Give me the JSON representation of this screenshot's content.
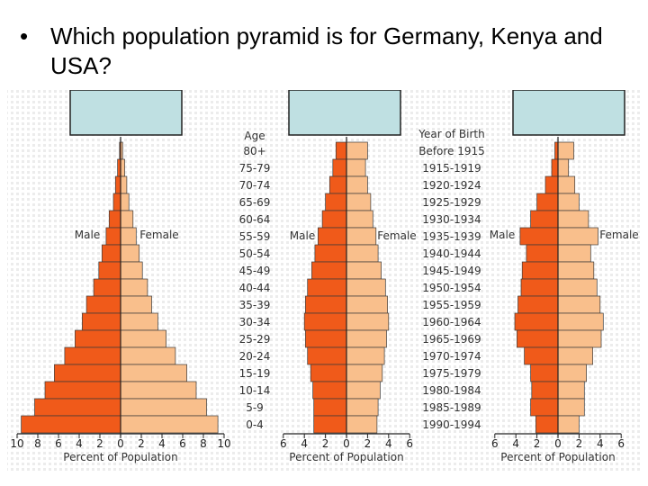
{
  "question": {
    "bullet": "•",
    "text": "Which population pyramid is for Germany, Kenya and USA?"
  },
  "colors": {
    "male": "#f05a1a",
    "female": "#f9bf8c",
    "outline": "#3a3a3a",
    "answer_box": "#bfe0e2",
    "background_pattern": "#ececec"
  },
  "chart_data": [
    {
      "type": "bar",
      "orientation": "horizontal-diverging",
      "xlabel": "Percent of Population",
      "categories": [
        "80+",
        "75-79",
        "70-74",
        "65-69",
        "60-64",
        "55-59",
        "50-54",
        "45-49",
        "40-44",
        "35-39",
        "30-34",
        "25-29",
        "20-24",
        "15-19",
        "10-14",
        "5-9",
        "0-4"
      ],
      "category_axis_title": "Age",
      "xlim": [
        -10,
        10
      ],
      "xticks": [
        "10",
        "8",
        "6",
        "4",
        "2",
        "0",
        "2",
        "4",
        "6",
        "8",
        "10"
      ],
      "series": [
        {
          "name": "Male",
          "values": [
            0.1,
            0.3,
            0.5,
            0.7,
            1.1,
            1.4,
            1.8,
            2.1,
            2.6,
            3.3,
            3.7,
            4.4,
            5.4,
            6.4,
            7.3,
            8.3,
            9.6
          ]
        },
        {
          "name": "Female",
          "values": [
            0.2,
            0.4,
            0.6,
            0.8,
            1.2,
            1.5,
            1.8,
            2.1,
            2.6,
            3.0,
            3.6,
            4.4,
            5.3,
            6.4,
            7.3,
            8.3,
            9.4
          ]
        }
      ]
    },
    {
      "type": "bar",
      "orientation": "horizontal-diverging",
      "xlabel": "Percent of Population",
      "xlim": [
        -6,
        6
      ],
      "xticks": [
        "6",
        "4",
        "2",
        "0",
        "2",
        "4",
        "6"
      ],
      "series": [
        {
          "name": "Male",
          "values": [
            1.0,
            1.3,
            1.6,
            2.0,
            2.3,
            2.7,
            3.0,
            3.3,
            3.7,
            3.9,
            4.0,
            3.9,
            3.7,
            3.4,
            3.2,
            3.1,
            3.1
          ]
        },
        {
          "name": "Female",
          "values": [
            2.0,
            1.8,
            2.0,
            2.3,
            2.5,
            2.8,
            3.0,
            3.3,
            3.7,
            3.9,
            4.0,
            3.8,
            3.6,
            3.4,
            3.2,
            3.0,
            2.9
          ]
        }
      ]
    },
    {
      "type": "bar",
      "orientation": "horizontal-diverging",
      "xlabel": "Percent of Population",
      "categories": [
        "Before 1915",
        "1915-1919",
        "1920-1924",
        "1925-1929",
        "1930-1934",
        "1935-1939",
        "1940-1944",
        "1945-1949",
        "1950-1954",
        "1955-1959",
        "1960-1964",
        "1965-1969",
        "1970-1974",
        "1975-1979",
        "1980-1984",
        "1985-1989",
        "1990-1994"
      ],
      "category_axis_title": "Year of Birth",
      "xlim": [
        -6,
        6
      ],
      "xticks": [
        "6",
        "4",
        "2",
        "0",
        "2",
        "4",
        "6"
      ],
      "series": [
        {
          "name": "Male",
          "values": [
            0.3,
            0.6,
            1.2,
            2.0,
            2.6,
            3.6,
            3.0,
            3.4,
            3.5,
            3.8,
            4.1,
            3.9,
            3.2,
            2.6,
            2.5,
            2.6,
            2.1
          ]
        },
        {
          "name": "Female",
          "values": [
            1.5,
            1.0,
            1.6,
            2.0,
            2.9,
            3.8,
            3.1,
            3.4,
            3.7,
            4.0,
            4.3,
            4.1,
            3.3,
            2.7,
            2.5,
            2.5,
            2.0
          ]
        }
      ]
    }
  ]
}
